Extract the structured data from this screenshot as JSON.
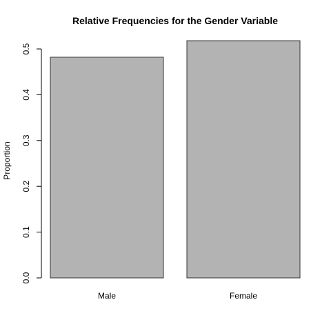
{
  "chart_data": {
    "type": "bar",
    "title": "Relative Frequencies for the Gender Variable",
    "xlabel": "",
    "ylabel": "Proportion",
    "categories": [
      "Male",
      "Female"
    ],
    "values": [
      0.482,
      0.518
    ],
    "ylim": [
      0,
      0.5
    ],
    "yticks": [
      0.0,
      0.1,
      0.2,
      0.3,
      0.4,
      0.5
    ],
    "ytick_labels": [
      "0.0",
      "0.1",
      "0.2",
      "0.3",
      "0.4",
      "0.5"
    ],
    "bar_color": "#b3b3b3",
    "grid": false,
    "legend": "none"
  }
}
